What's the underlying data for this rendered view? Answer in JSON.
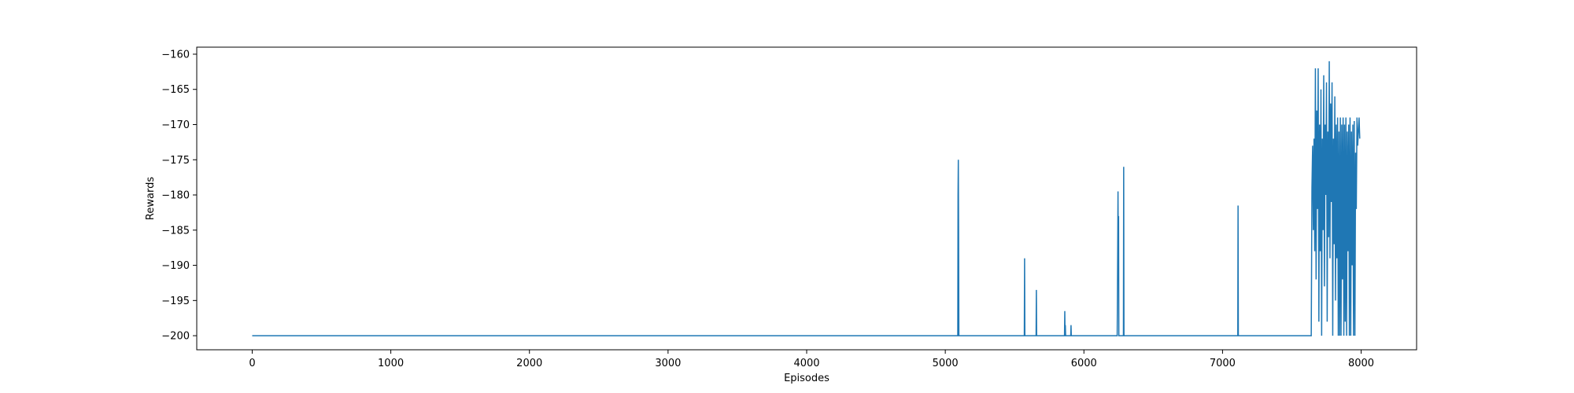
{
  "chart_data": {
    "type": "line",
    "title": "",
    "xlabel": "Episodes",
    "ylabel": "Rewards",
    "xlim": [
      -400,
      8400
    ],
    "ylim": [
      -202,
      -159
    ],
    "xticks": [
      0,
      1000,
      2000,
      3000,
      4000,
      5000,
      6000,
      7000,
      8000
    ],
    "yticks": [
      -200,
      -195,
      -190,
      -185,
      -180,
      -175,
      -170,
      -165,
      -160
    ],
    "grid": false,
    "color": "#1f77b4",
    "series": [
      {
        "name": "",
        "points": [
          [
            0,
            -200
          ],
          [
            5090,
            -200
          ],
          [
            5092,
            -180
          ],
          [
            5094,
            -175
          ],
          [
            5096,
            -185
          ],
          [
            5098,
            -200
          ],
          [
            5570,
            -200
          ],
          [
            5572,
            -189
          ],
          [
            5574,
            -200
          ],
          [
            5655,
            -200
          ],
          [
            5657,
            -193.5
          ],
          [
            5659,
            -200
          ],
          [
            5860,
            -200
          ],
          [
            5862,
            -196.5
          ],
          [
            5864,
            -200
          ],
          [
            5866,
            -198.5
          ],
          [
            5868,
            -200
          ],
          [
            5905,
            -200
          ],
          [
            5907,
            -198.5
          ],
          [
            5909,
            -200
          ],
          [
            6240,
            -200
          ],
          [
            6242,
            -194
          ],
          [
            6244,
            -187
          ],
          [
            6246,
            -179.5
          ],
          [
            6248,
            -190
          ],
          [
            6250,
            -183
          ],
          [
            6252,
            -200
          ],
          [
            6285,
            -200
          ],
          [
            6287,
            -176
          ],
          [
            6289,
            -200
          ],
          [
            7110,
            -200
          ],
          [
            7112,
            -181.5
          ],
          [
            7114,
            -200
          ],
          [
            7640,
            -200
          ],
          [
            7645,
            -179
          ],
          [
            7650,
            -173
          ],
          [
            7655,
            -185
          ],
          [
            7660,
            -172
          ],
          [
            7665,
            -188
          ],
          [
            7670,
            -162
          ],
          [
            7675,
            -192
          ],
          [
            7680,
            -168
          ],
          [
            7685,
            -182
          ],
          [
            7690,
            -162
          ],
          [
            7695,
            -198
          ],
          [
            7700,
            -170
          ],
          [
            7705,
            -188
          ],
          [
            7710,
            -165
          ],
          [
            7715,
            -200
          ],
          [
            7720,
            -172
          ],
          [
            7725,
            -185
          ],
          [
            7730,
            -163
          ],
          [
            7735,
            -193
          ],
          [
            7740,
            -170
          ],
          [
            7745,
            -180
          ],
          [
            7750,
            -164
          ],
          [
            7755,
            -198
          ],
          [
            7760,
            -171
          ],
          [
            7765,
            -186
          ],
          [
            7770,
            -161
          ],
          [
            7775,
            -189
          ],
          [
            7780,
            -167
          ],
          [
            7785,
            -181
          ],
          [
            7790,
            -164
          ],
          [
            7795,
            -200
          ],
          [
            7800,
            -172
          ],
          [
            7805,
            -187
          ],
          [
            7810,
            -166
          ],
          [
            7815,
            -195
          ],
          [
            7820,
            -170
          ],
          [
            7825,
            -189
          ],
          [
            7830,
            -169
          ],
          [
            7835,
            -200
          ],
          [
            7840,
            -171
          ],
          [
            7845,
            -200
          ],
          [
            7850,
            -169
          ],
          [
            7855,
            -200
          ],
          [
            7860,
            -170
          ],
          [
            7865,
            -192
          ],
          [
            7870,
            -169
          ],
          [
            7875,
            -200
          ],
          [
            7880,
            -170
          ],
          [
            7885,
            -198
          ],
          [
            7890,
            -169
          ],
          [
            7895,
            -200
          ],
          [
            7900,
            -171
          ],
          [
            7905,
            -188
          ],
          [
            7910,
            -170
          ],
          [
            7915,
            -200
          ],
          [
            7920,
            -169
          ],
          [
            7925,
            -200
          ],
          [
            7930,
            -171
          ],
          [
            7935,
            -190
          ],
          [
            7940,
            -170
          ],
          [
            7945,
            -200
          ],
          [
            7950,
            -169.5
          ],
          [
            7955,
            -200
          ],
          [
            7960,
            -174
          ],
          [
            7965,
            -182
          ],
          [
            7970,
            -169
          ],
          [
            7975,
            -173
          ],
          [
            7980,
            -171
          ],
          [
            7985,
            -169
          ],
          [
            7990,
            -172
          ]
        ]
      }
    ]
  }
}
